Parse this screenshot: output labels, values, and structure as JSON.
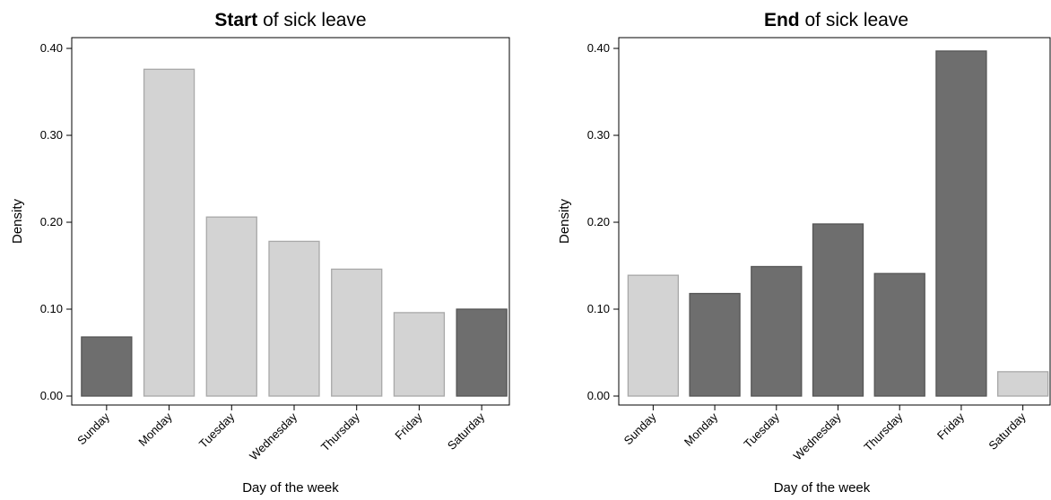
{
  "chart_data": [
    {
      "type": "bar",
      "title_emphasis": "Start",
      "title_rest": "of sick leave",
      "x_label": "Day of the week",
      "y_label": "Density",
      "categories": [
        "Sunday",
        "Monday",
        "Tuesday",
        "Wednesday",
        "Thursday",
        "Friday",
        "Saturday"
      ],
      "values": [
        0.068,
        0.376,
        0.206,
        0.178,
        0.146,
        0.096,
        0.1
      ],
      "colors": [
        "#6e6e6e",
        "#d3d3d3",
        "#d3d3d3",
        "#d3d3d3",
        "#d3d3d3",
        "#d3d3d3",
        "#6e6e6e"
      ],
      "ylim": [
        -0.0103,
        0.4124
      ],
      "yticks": [
        {
          "value": 0,
          "label": "0.00"
        },
        {
          "value": 0.1,
          "label": "0.10"
        },
        {
          "value": 0.2,
          "label": "0.20"
        },
        {
          "value": 0.3,
          "label": "0.30"
        },
        {
          "value": 0.4,
          "label": "0.40"
        }
      ]
    },
    {
      "type": "bar",
      "title_emphasis": "End",
      "title_rest": "of sick leave",
      "x_label": "Day of the week",
      "y_label": "Density",
      "categories": [
        "Sunday",
        "Monday",
        "Tuesday",
        "Wednesday",
        "Thursday",
        "Friday",
        "Saturday"
      ],
      "values": [
        0.139,
        0.118,
        0.149,
        0.198,
        0.141,
        0.397,
        0.028
      ],
      "colors": [
        "#d3d3d3",
        "#6e6e6e",
        "#6e6e6e",
        "#6e6e6e",
        "#6e6e6e",
        "#6e6e6e",
        "#d3d3d3"
      ],
      "ylim": [
        -0.0103,
        0.4124
      ],
      "yticks": [
        {
          "value": 0,
          "label": "0.00"
        },
        {
          "value": 0.1,
          "label": "0.10"
        },
        {
          "value": 0.2,
          "label": "0.20"
        },
        {
          "value": 0.3,
          "label": "0.30"
        },
        {
          "value": 0.4,
          "label": "0.40"
        }
      ]
    }
  ]
}
